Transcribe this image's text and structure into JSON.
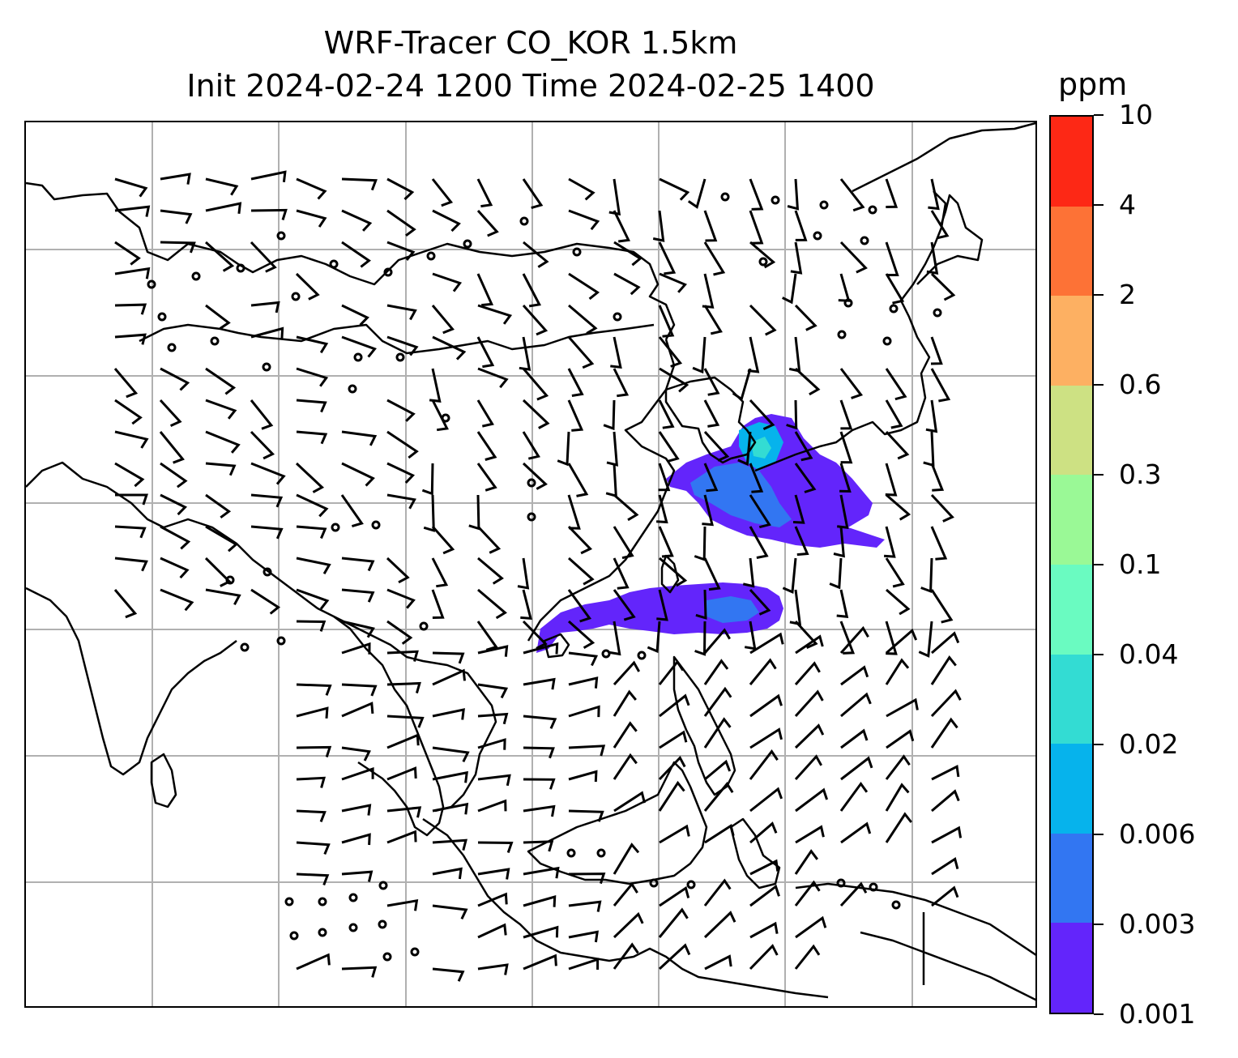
{
  "title": {
    "line1": "WRF-Tracer CO_KOR 1.5km",
    "line2": "Init 2024-02-24 1200 Time 2024-02-25 1400"
  },
  "colorbar": {
    "unit": "ppm",
    "levels": [
      "0.001",
      "0.003",
      "0.006",
      "0.02",
      "0.04",
      "0.1",
      "0.3",
      "0.6",
      "2",
      "4",
      "10"
    ],
    "colors": [
      "#6325fb",
      "#3276f2",
      "#06b3ec",
      "#33dcd3",
      "#6afbc1",
      "#9af996",
      "#cde183",
      "#fdb062",
      "#fd7236",
      "#fd2815"
    ]
  },
  "map": {
    "projection": "lat-lon grid",
    "gridlines": true,
    "tracer_field": "CO_KOR",
    "wind_barbs": true,
    "plume_colors": {
      "low": "#6325fb",
      "mid": "#3276f2",
      "high": "#06b3ec",
      "peak": "#33dcd3"
    }
  }
}
